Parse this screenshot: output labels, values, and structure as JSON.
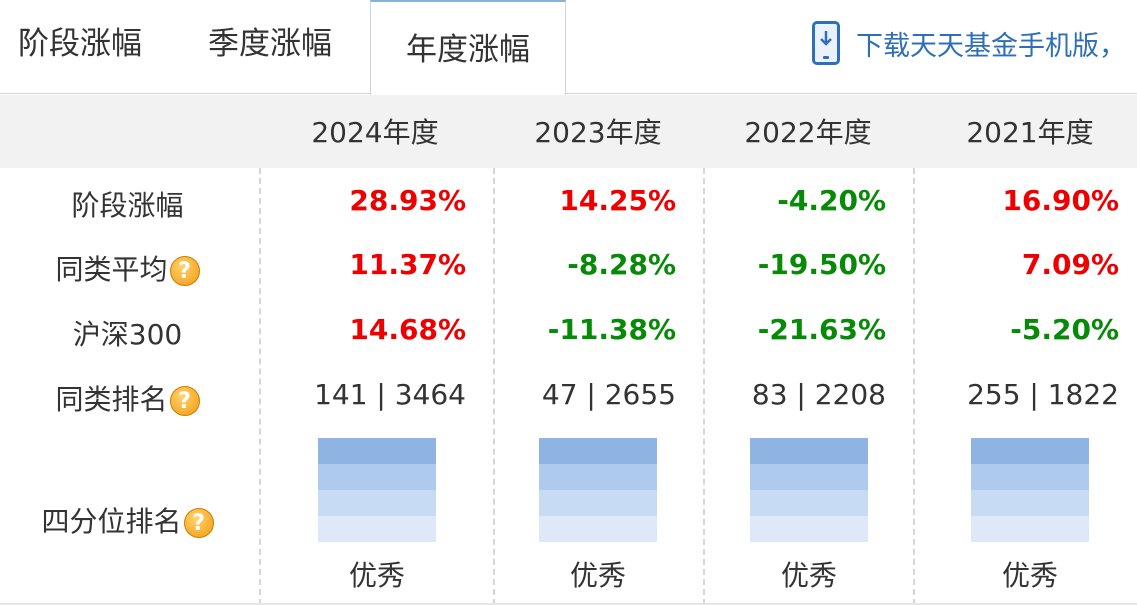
{
  "tabs": [
    "阶段涨幅",
    "季度涨幅",
    "年度涨幅"
  ],
  "download_text": "下载天天基金手机版，",
  "years": [
    "2024年度",
    "2023年度",
    "2022年度",
    "2021年度"
  ],
  "rows": [
    {
      "label": "阶段涨幅",
      "help": false,
      "values": [
        "28.93%",
        "14.25%",
        "-4.20%",
        "16.90%"
      ]
    },
    {
      "label": "同类平均",
      "help": true,
      "values": [
        "11.37%",
        "-8.28%",
        "-19.50%",
        "7.09%"
      ]
    },
    {
      "label": "沪深300",
      "help": false,
      "values": [
        "14.68%",
        "-11.38%",
        "-21.63%",
        "-5.20%"
      ]
    },
    {
      "label": "同类排名",
      "help": true,
      "values": [
        "141 | 3464",
        "47 | 2655",
        "83 | 2208",
        "255 | 1822"
      ]
    }
  ],
  "quartile": {
    "label": "四分位排名",
    "results": [
      "优秀",
      "优秀",
      "优秀",
      "优秀"
    ]
  },
  "colors": {
    "positive": "#ee0000",
    "negative": "#078a07",
    "link": "#2f6fb7"
  }
}
